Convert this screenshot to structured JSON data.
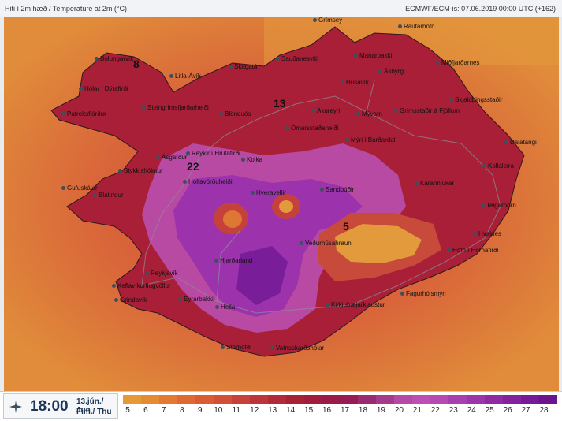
{
  "header": {
    "title": "Hiti í 2m hæð / Temperature at 2m (°C)",
    "model": "ECMWF/ECM-is: 07.06.2019 00:00 UTC (+162)"
  },
  "footer": {
    "time": "18:00",
    "date_line1": "13.jún./ Jun",
    "date_line2": "Fim./ Thu",
    "scale_labels": [
      "5",
      "6",
      "7",
      "8",
      "9",
      "10",
      "11",
      "12",
      "13",
      "14",
      "15",
      "16",
      "17",
      "18",
      "19",
      "20",
      "21",
      "22",
      "23",
      "24",
      "25",
      "26",
      "27",
      "28"
    ],
    "scale_colors": [
      "#e49a36",
      "#e58b34",
      "#e27a32",
      "#de6a33",
      "#da5c34",
      "#d34f36",
      "#c8423b",
      "#bd343a",
      "#b22a3a",
      "#a62237",
      "#a01d3d",
      "#9a1b48",
      "#961c57",
      "#9a2a72",
      "#a43a8c",
      "#b34aa5",
      "#bb4fb5",
      "#b44ab2",
      "#a83fae",
      "#9b35a9",
      "#8e2ba3",
      "#82239d",
      "#761b95",
      "#6b148c"
    ]
  },
  "map": {
    "sea_color": "#de7c3b",
    "places": [
      {
        "name": "Grímsey"
      },
      {
        "name": "Raufarhöfn"
      },
      {
        "name": "Bolungarvík"
      },
      {
        "name": "Sauðanesviti"
      },
      {
        "name": "Mánárbakki"
      },
      {
        "name": "Miðfjarðarnes"
      },
      {
        "name": "Litla-Ávík"
      },
      {
        "name": "Skagatá"
      },
      {
        "name": "Ásbyrgi"
      },
      {
        "name": "Hólar í Dýrafirði"
      },
      {
        "name": "Húsavík"
      },
      {
        "name": "Skjaldþingsstaðir"
      },
      {
        "name": "Steingrímsfjarðarheiði"
      },
      {
        "name": "Akureyri"
      },
      {
        "name": "Grímsstaðir á Fjöllum"
      },
      {
        "name": "Patreksfjörður"
      },
      {
        "name": "Blönduós"
      },
      {
        "name": "Mývatn"
      },
      {
        "name": "Ómarsstaðaheiði"
      },
      {
        "name": "Dalatangi"
      },
      {
        "name": "Reykir í Hrútafirði"
      },
      {
        "name": "Mýri í Bárðardal"
      },
      {
        "name": "Ásgarður"
      },
      {
        "name": "Kolka"
      },
      {
        "name": "Kollaleira"
      },
      {
        "name": "Stykkishólmur"
      },
      {
        "name": "Holtavörðuheiði"
      },
      {
        "name": "Kárahnjúkar"
      },
      {
        "name": "Gufuskálar"
      },
      {
        "name": "Hveravellir"
      },
      {
        "name": "Sandbúðir"
      },
      {
        "name": "Teigarhorn"
      },
      {
        "name": "Blátindur"
      },
      {
        "name": "Veðurhúsahraun"
      },
      {
        "name": "Hvalnes"
      },
      {
        "name": "Hjarðarland"
      },
      {
        "name": "Höfn í Hornafirði"
      },
      {
        "name": "Reykjavík"
      },
      {
        "name": "Fagurhólsmýri"
      },
      {
        "name": "Keflavíkurflugvöllur"
      },
      {
        "name": "Kirkjubæjarklaustur"
      },
      {
        "name": "Grindavík"
      },
      {
        "name": "Eyrarbakki"
      },
      {
        "name": "Hella"
      },
      {
        "name": "Stórhöfði"
      },
      {
        "name": "Vatnsskarðshólar"
      }
    ],
    "values": [
      {
        "text": "8"
      },
      {
        "text": "13"
      },
      {
        "text": "22"
      },
      {
        "text": "5"
      }
    ]
  }
}
